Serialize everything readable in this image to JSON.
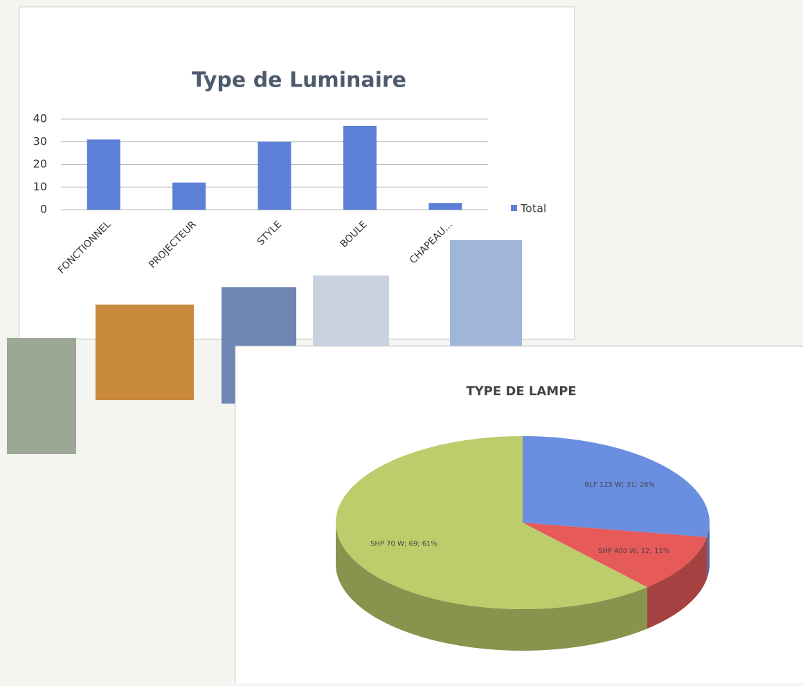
{
  "chart_data": [
    {
      "type": "bar",
      "title": "Type de Luminaire",
      "categories": [
        "FONCTIONNEL",
        "PROJECTEUR",
        "STYLE",
        "BOULE",
        "CHAPEAU..."
      ],
      "series": [
        {
          "name": "Total",
          "color": "#5b80d6",
          "values": [
            31,
            12,
            30,
            37,
            3
          ]
        }
      ],
      "ylim": [
        0,
        40
      ],
      "yticks": [
        0,
        10,
        20,
        30,
        40
      ],
      "grid": true,
      "legend": "right"
    },
    {
      "type": "pie",
      "title": "TYPE DE LAMPE",
      "values": [
        31,
        12,
        69
      ],
      "value_labels": [
        "BLF 125 W; 31; 28%",
        "SHP 400 W; 12; 11%",
        "SHP 70 W; 69; 61%"
      ],
      "colors": [
        "#6a8ee0",
        "#e65a5a",
        "#bccd6c"
      ]
    }
  ]
}
